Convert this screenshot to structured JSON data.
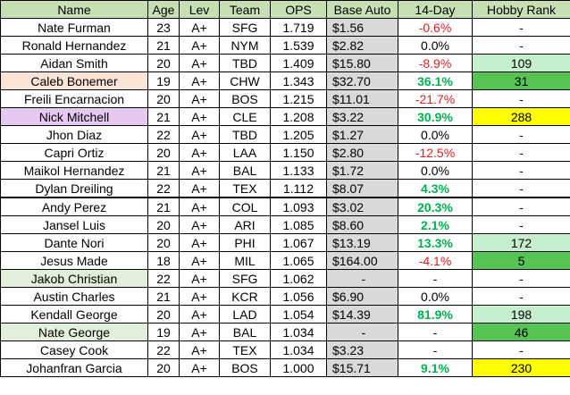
{
  "table": {
    "columns": [
      "Name",
      "Age",
      "Lev",
      "Team",
      "OPS",
      "Base Auto",
      "14-Day",
      "Hobby Rank"
    ],
    "header_fill": "#c6e0b4",
    "base_auto_fill": "#d9d9d9",
    "rows": [
      {
        "cells": [
          "Nate Furman",
          "23",
          "A+",
          "SFG",
          "1.719",
          "$1.56",
          "-0.6%",
          "-"
        ]
      },
      {
        "cells": [
          "Ronald Hernandez",
          "21",
          "A+",
          "NYM",
          "1.539",
          "$2.82",
          "0.0%",
          "-"
        ]
      },
      {
        "cells": [
          "Aidan Smith",
          "20",
          "A+",
          "TBD",
          "1.409",
          "$15.80",
          "-8.9%",
          "109"
        ],
        "rank_fill": "#c6efce"
      },
      {
        "cells": [
          "Caleb Bonemer",
          "19",
          "A+",
          "CHW",
          "1.343",
          "$32.70",
          "36.1%",
          "31"
        ],
        "name_fill": "#fce4d6",
        "rank_fill": "#55c455"
      },
      {
        "cells": [
          "Freili Encarnacion",
          "20",
          "A+",
          "BOS",
          "1.215",
          "$11.01",
          "-21.7%",
          "-"
        ]
      },
      {
        "cells": [
          "Nick Mitchell",
          "21",
          "A+",
          "CLE",
          "1.208",
          "$3.22",
          "30.9%",
          "288"
        ],
        "name_fill": "#e6c8f0",
        "rank_fill": "#ffff00"
      },
      {
        "cells": [
          "Jhon Diaz",
          "22",
          "A+",
          "TBD",
          "1.205",
          "$1.27",
          "0.0%",
          "-"
        ]
      },
      {
        "cells": [
          "Capri Ortiz",
          "20",
          "A+",
          "LAA",
          "1.150",
          "$2.80",
          "-12.5%",
          "-"
        ]
      },
      {
        "cells": [
          "Maikol Hernandez",
          "21",
          "A+",
          "BAL",
          "1.133",
          "$1.72",
          "0.0%",
          "-"
        ]
      },
      {
        "cells": [
          "Dylan Dreiling",
          "22",
          "A+",
          "TEX",
          "1.112",
          "$8.07",
          "4.3%",
          "-"
        ]
      },
      {
        "cells": [
          "Andy Perez",
          "21",
          "A+",
          "COL",
          "1.093",
          "$3.02",
          "20.3%",
          "-"
        ]
      },
      {
        "cells": [
          "Jansel Luis",
          "20",
          "A+",
          "ARI",
          "1.085",
          "$8.60",
          "2.1%",
          "-"
        ]
      },
      {
        "cells": [
          "Dante Nori",
          "20",
          "A+",
          "PHI",
          "1.067",
          "$13.19",
          "13.3%",
          "172"
        ],
        "rank_fill": "#c6efce"
      },
      {
        "cells": [
          "Jesus Made",
          "18",
          "A+",
          "MIL",
          "1.065",
          "$164.00",
          "-4.1%",
          "5"
        ],
        "rank_fill": "#55c455"
      },
      {
        "cells": [
          "Jakob Christian",
          "22",
          "A+",
          "SFG",
          "1.062",
          "-",
          "-",
          "-"
        ],
        "name_fill": "#e2efda"
      },
      {
        "cells": [
          "Austin Charles",
          "21",
          "A+",
          "KCR",
          "1.056",
          "$6.90",
          "0.0%",
          "-"
        ]
      },
      {
        "cells": [
          "Kendall George",
          "20",
          "A+",
          "LAD",
          "1.054",
          "$14.39",
          "81.9%",
          "198"
        ],
        "rank_fill": "#c6efce"
      },
      {
        "cells": [
          "Nate George",
          "19",
          "A+",
          "BAL",
          "1.034",
          "-",
          "-",
          "46"
        ],
        "name_fill": "#e2efda",
        "rank_fill": "#55c455"
      },
      {
        "cells": [
          "Casey Cook",
          "22",
          "A+",
          "TEX",
          "1.034",
          "$3.23",
          "-",
          "-"
        ]
      },
      {
        "cells": [
          "Johanfran Garcia",
          "20",
          "A+",
          "BOS",
          "1.000",
          "$15.71",
          "9.1%",
          "230"
        ],
        "rank_fill": "#ffff00"
      }
    ]
  }
}
